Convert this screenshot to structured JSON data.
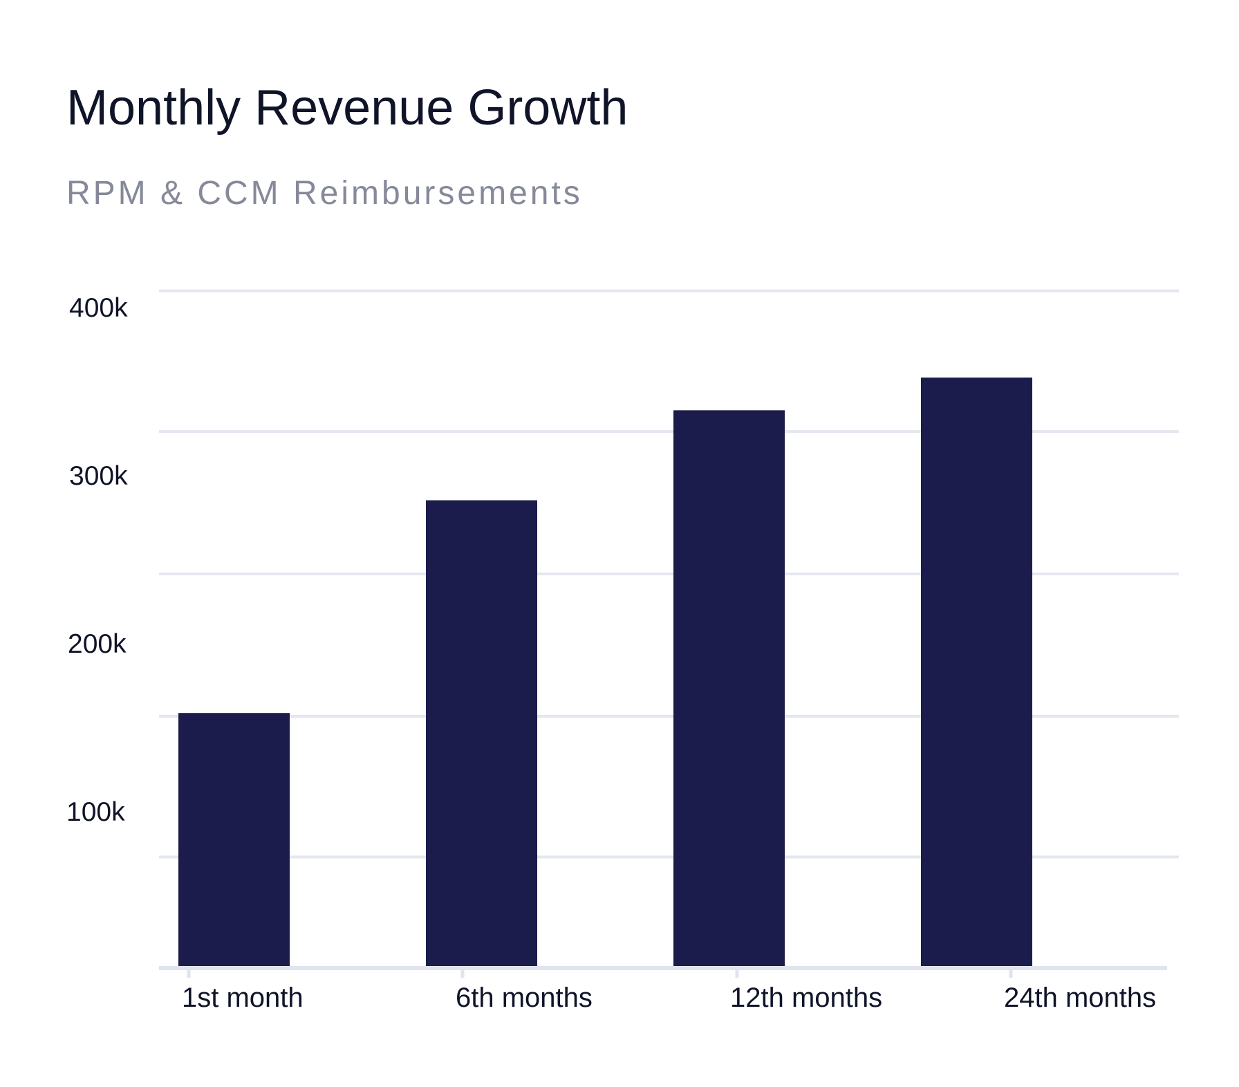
{
  "chart_data": {
    "type": "bar",
    "title": "Monthly Revenue Growth",
    "subtitle": "RPM & CCM Reimbursements",
    "categories": [
      "1st month",
      "6th months",
      "12th months",
      "24th months"
    ],
    "values": [
      155,
      285,
      340,
      360
    ],
    "ylim": [
      0,
      420
    ],
    "gridlines": [
      67,
      153,
      240,
      327,
      413
    ],
    "y_ticks": [
      {
        "label": "400k",
        "value": 400
      },
      {
        "label": "300k",
        "value": 300
      },
      {
        "label": "200k",
        "value": 200
      },
      {
        "label": "100k",
        "value": 100
      }
    ],
    "xlabel": "",
    "ylabel": "",
    "grid": true,
    "bar_color": "#1c1c4c"
  }
}
